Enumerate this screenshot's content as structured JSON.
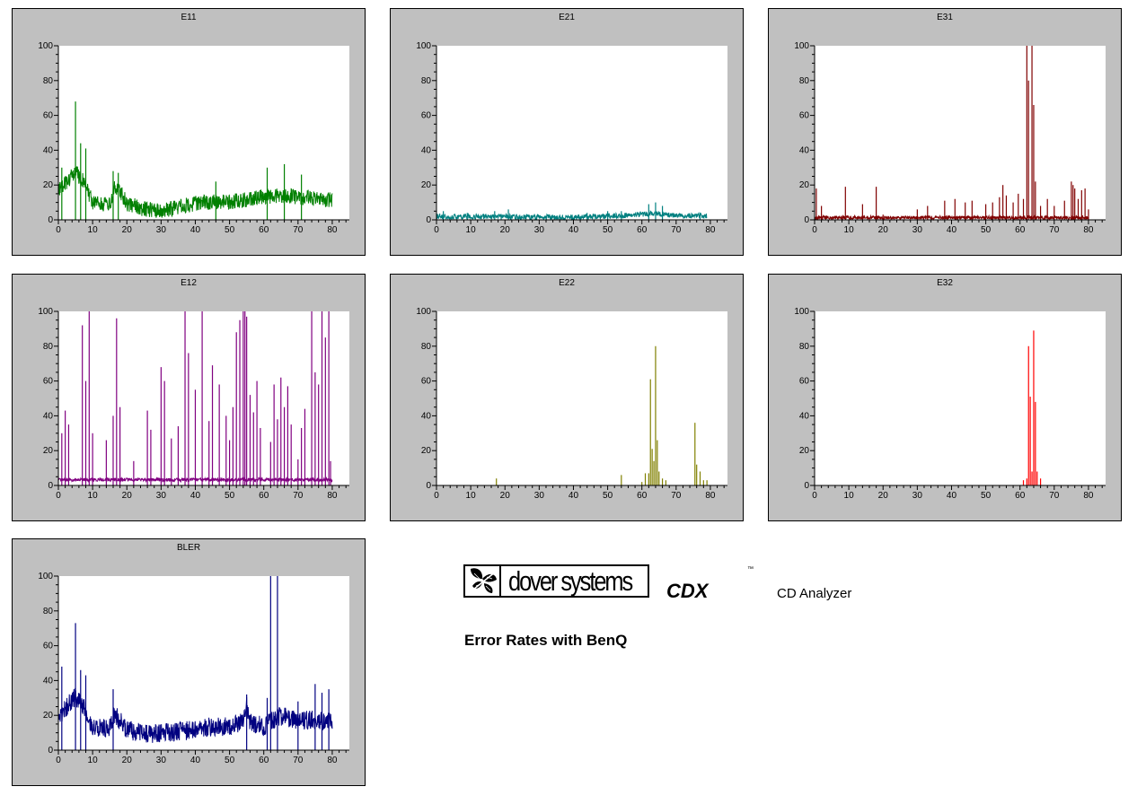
{
  "report": {
    "brand_name": "dover systems",
    "product_code": "CDX",
    "trademark": "™",
    "product_name": "CD Analyzer",
    "subtitle": "Error Rates with BenQ"
  },
  "chart_data": [
    {
      "id": "e11",
      "title": "E11",
      "type": "line",
      "color": "#008000",
      "xlim": [
        0,
        85
      ],
      "ylim": [
        0,
        100
      ],
      "x_ticks": [
        0,
        10,
        20,
        30,
        40,
        50,
        60,
        70,
        80
      ],
      "y_ticks": [
        0,
        20,
        40,
        60,
        80,
        100
      ],
      "x_range": [
        0,
        80
      ],
      "profile": [
        [
          0,
          15
        ],
        [
          3,
          22
        ],
        [
          5,
          26
        ],
        [
          7,
          22
        ],
        [
          10,
          9
        ],
        [
          15,
          7
        ],
        [
          16.5,
          18
        ],
        [
          18,
          15
        ],
        [
          20,
          8
        ],
        [
          25,
          5
        ],
        [
          30,
          4
        ],
        [
          35,
          6
        ],
        [
          40,
          8
        ],
        [
          45,
          9
        ],
        [
          50,
          9
        ],
        [
          55,
          10
        ],
        [
          60,
          12
        ],
        [
          65,
          13
        ],
        [
          70,
          12
        ],
        [
          75,
          11
        ],
        [
          80,
          10
        ]
      ],
      "noise": 9,
      "spikes": [
        [
          1,
          30
        ],
        [
          5,
          68
        ],
        [
          6.5,
          44
        ],
        [
          8,
          41
        ],
        [
          16,
          28
        ],
        [
          17.5,
          27
        ],
        [
          46,
          22
        ],
        [
          61,
          30
        ],
        [
          66,
          32
        ],
        [
          71,
          26
        ]
      ]
    },
    {
      "id": "e21",
      "title": "E21",
      "type": "line",
      "color": "#008080",
      "xlim": [
        0,
        85
      ],
      "ylim": [
        0,
        100
      ],
      "x_ticks": [
        0,
        10,
        20,
        30,
        40,
        50,
        60,
        70,
        80
      ],
      "y_ticks": [
        0,
        20,
        40,
        60,
        80,
        100
      ],
      "x_range": [
        0,
        79
      ],
      "profile": [
        [
          0,
          1.5
        ],
        [
          40,
          1
        ],
        [
          55,
          2
        ],
        [
          62,
          3
        ],
        [
          65,
          3
        ],
        [
          70,
          2
        ],
        [
          79,
          2
        ]
      ],
      "noise": 3,
      "spikes": [
        [
          2,
          5
        ],
        [
          9,
          4
        ],
        [
          17,
          5
        ],
        [
          21,
          6
        ],
        [
          44,
          4
        ],
        [
          50,
          5
        ],
        [
          54,
          5
        ],
        [
          62,
          9
        ],
        [
          64,
          10
        ],
        [
          66,
          8
        ],
        [
          77,
          4
        ]
      ]
    },
    {
      "id": "e31",
      "title": "E31",
      "type": "line",
      "color": "#800000",
      "xlim": [
        0,
        85
      ],
      "ylim": [
        0,
        100
      ],
      "x_ticks": [
        0,
        10,
        20,
        30,
        40,
        50,
        60,
        70,
        80
      ],
      "y_ticks": [
        0,
        20,
        40,
        60,
        80,
        100
      ],
      "x_range": [
        0,
        80
      ],
      "profile": [
        [
          0,
          1
        ],
        [
          80,
          1
        ]
      ],
      "noise": 2,
      "spikes": [
        [
          0.5,
          18
        ],
        [
          2,
          8
        ],
        [
          9,
          19
        ],
        [
          14,
          9
        ],
        [
          18,
          19
        ],
        [
          20,
          3
        ],
        [
          30,
          6
        ],
        [
          33,
          8
        ],
        [
          38,
          11
        ],
        [
          41,
          12
        ],
        [
          44,
          10
        ],
        [
          46,
          11
        ],
        [
          50,
          9
        ],
        [
          52,
          10
        ],
        [
          54,
          13
        ],
        [
          55,
          20
        ],
        [
          56,
          14
        ],
        [
          58,
          10
        ],
        [
          59.5,
          15
        ],
        [
          61,
          12
        ],
        [
          62,
          100
        ],
        [
          62.5,
          80
        ],
        [
          63.5,
          100
        ],
        [
          64,
          66
        ],
        [
          64.5,
          22
        ],
        [
          66,
          8
        ],
        [
          68,
          12
        ],
        [
          70,
          8
        ],
        [
          73,
          11
        ],
        [
          75,
          22
        ],
        [
          75.5,
          20
        ],
        [
          76,
          18
        ],
        [
          77,
          12
        ],
        [
          78,
          17
        ],
        [
          79,
          18
        ],
        [
          80,
          6
        ]
      ]
    },
    {
      "id": "e12",
      "title": "E12",
      "type": "line",
      "color": "#800080",
      "xlim": [
        0,
        85
      ],
      "ylim": [
        0,
        100
      ],
      "x_ticks": [
        0,
        10,
        20,
        30,
        40,
        50,
        60,
        70,
        80
      ],
      "y_ticks": [
        0,
        20,
        40,
        60,
        80,
        100
      ],
      "x_range": [
        0,
        80
      ],
      "profile": [
        [
          0,
          3
        ],
        [
          80,
          3
        ]
      ],
      "noise": 2,
      "spikes": [
        [
          1,
          30
        ],
        [
          2,
          43
        ],
        [
          3,
          35
        ],
        [
          7,
          92
        ],
        [
          8,
          60
        ],
        [
          9,
          100
        ],
        [
          10,
          30
        ],
        [
          14,
          26
        ],
        [
          16,
          40
        ],
        [
          17,
          96
        ],
        [
          18,
          45
        ],
        [
          22,
          14
        ],
        [
          26,
          43
        ],
        [
          27,
          32
        ],
        [
          30,
          68
        ],
        [
          31,
          60
        ],
        [
          33,
          27
        ],
        [
          35,
          34
        ],
        [
          37,
          100
        ],
        [
          38,
          76
        ],
        [
          40,
          55
        ],
        [
          42,
          100
        ],
        [
          44,
          37
        ],
        [
          45,
          69
        ],
        [
          47,
          58
        ],
        [
          49,
          40
        ],
        [
          50,
          26
        ],
        [
          51,
          45
        ],
        [
          52,
          88
        ],
        [
          53,
          95
        ],
        [
          54,
          100
        ],
        [
          54.5,
          100
        ],
        [
          55,
          97
        ],
        [
          56,
          52
        ],
        [
          57,
          42
        ],
        [
          58,
          60
        ],
        [
          59,
          33
        ],
        [
          62,
          25
        ],
        [
          63,
          58
        ],
        [
          64,
          38
        ],
        [
          65,
          62
        ],
        [
          66,
          45
        ],
        [
          67,
          57
        ],
        [
          68,
          35
        ],
        [
          70,
          15
        ],
        [
          71,
          33
        ],
        [
          72,
          44
        ],
        [
          74,
          100
        ],
        [
          75,
          65
        ],
        [
          76,
          58
        ],
        [
          77,
          100
        ],
        [
          78,
          85
        ],
        [
          79,
          100
        ],
        [
          79.5,
          14
        ]
      ]
    },
    {
      "id": "e22",
      "title": "E22",
      "type": "line",
      "color": "#808000",
      "xlim": [
        0,
        85
      ],
      "ylim": [
        0,
        100
      ],
      "x_ticks": [
        0,
        10,
        20,
        30,
        40,
        50,
        60,
        70,
        80
      ],
      "y_ticks": [
        0,
        20,
        40,
        60,
        80,
        100
      ],
      "x_range": [
        0,
        80
      ],
      "profile": [
        [
          0,
          0
        ],
        [
          80,
          0
        ]
      ],
      "noise": 0,
      "spikes": [
        [
          17.5,
          4
        ],
        [
          54,
          6
        ],
        [
          60,
          2
        ],
        [
          61,
          7
        ],
        [
          62,
          7
        ],
        [
          62.5,
          61
        ],
        [
          63,
          21
        ],
        [
          63.5,
          14
        ],
        [
          64,
          80
        ],
        [
          64.5,
          26
        ],
        [
          65,
          8
        ],
        [
          66,
          4
        ],
        [
          67,
          3
        ],
        [
          75.5,
          36
        ],
        [
          76,
          12
        ],
        [
          77,
          8
        ],
        [
          78,
          3
        ],
        [
          79,
          3
        ]
      ]
    },
    {
      "id": "e32",
      "title": "E32",
      "type": "line",
      "color": "#ff0000",
      "xlim": [
        0,
        85
      ],
      "ylim": [
        0,
        100
      ],
      "x_ticks": [
        0,
        10,
        20,
        30,
        40,
        50,
        60,
        70,
        80
      ],
      "y_ticks": [
        0,
        20,
        40,
        60,
        80,
        100
      ],
      "x_range": [
        0,
        80
      ],
      "profile": [
        [
          0,
          0
        ],
        [
          80,
          0
        ]
      ],
      "noise": 0,
      "spikes": [
        [
          61,
          3
        ],
        [
          62,
          4
        ],
        [
          62.5,
          80
        ],
        [
          63,
          51
        ],
        [
          63.5,
          8
        ],
        [
          64,
          89
        ],
        [
          64.5,
          48
        ],
        [
          65,
          8
        ],
        [
          66,
          4
        ]
      ]
    },
    {
      "id": "bler",
      "title": "BLER",
      "type": "line",
      "color": "#000080",
      "xlim": [
        0,
        85
      ],
      "ylim": [
        0,
        100
      ],
      "x_ticks": [
        0,
        10,
        20,
        30,
        40,
        50,
        60,
        70,
        80
      ],
      "y_ticks": [
        0,
        20,
        40,
        60,
        80,
        100
      ],
      "x_range": [
        0,
        80
      ],
      "profile": [
        [
          0,
          17
        ],
        [
          3,
          25
        ],
        [
          5,
          29
        ],
        [
          7,
          25
        ],
        [
          10,
          12
        ],
        [
          15,
          11
        ],
        [
          16.5,
          19
        ],
        [
          18,
          15
        ],
        [
          20,
          10
        ],
        [
          25,
          8
        ],
        [
          30,
          8
        ],
        [
          35,
          9
        ],
        [
          40,
          10
        ],
        [
          45,
          12
        ],
        [
          50,
          12
        ],
        [
          54,
          15
        ],
        [
          55,
          24
        ],
        [
          56,
          14
        ],
        [
          60,
          12
        ],
        [
          63,
          16
        ],
        [
          65,
          18
        ],
        [
          70,
          15
        ],
        [
          75,
          16
        ],
        [
          80,
          14
        ]
      ],
      "noise": 11,
      "spikes": [
        [
          1,
          48
        ],
        [
          5,
          73
        ],
        [
          6.5,
          46
        ],
        [
          8,
          43
        ],
        [
          16,
          35
        ],
        [
          55,
          32
        ],
        [
          62,
          100
        ],
        [
          64,
          100
        ],
        [
          61,
          30
        ],
        [
          70,
          28
        ],
        [
          75,
          38
        ],
        [
          77,
          33
        ],
        [
          79,
          35
        ]
      ]
    }
  ]
}
